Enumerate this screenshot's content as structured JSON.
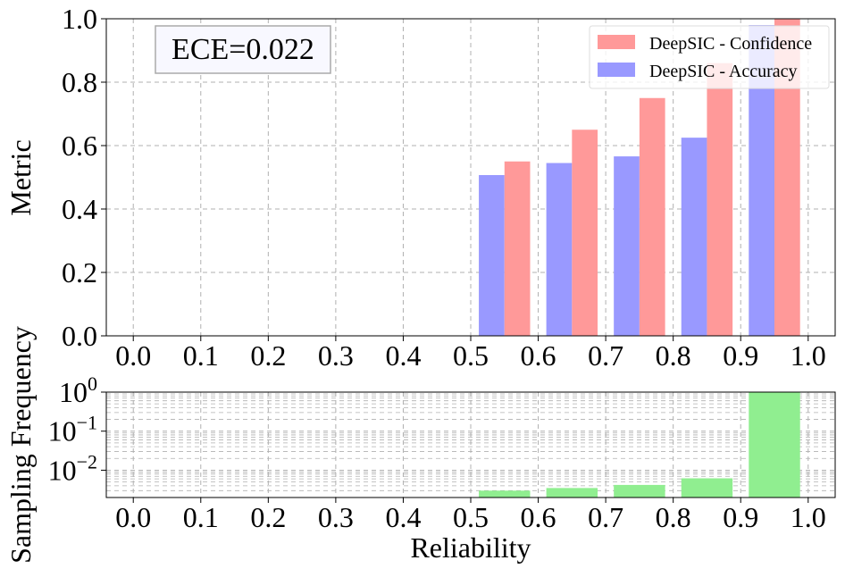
{
  "chart_data": [
    {
      "type": "bar",
      "bins": [
        "0.5-0.6",
        "0.6-0.7",
        "0.7-0.8",
        "0.8-0.9",
        "0.9-1.0"
      ],
      "series": [
        {
          "name": "DeepSIC - Confidence",
          "color": "#ff9999",
          "values": [
            0.55,
            0.65,
            0.75,
            0.86,
            1.0
          ]
        },
        {
          "name": "DeepSIC - Accuracy",
          "color": "#9999ff",
          "values": [
            0.507,
            0.545,
            0.566,
            0.625,
            0.98
          ]
        }
      ],
      "annotation": "ECE=0.022",
      "ylabel": "Metric",
      "xlim": [
        -0.04,
        1.04
      ],
      "ylim": [
        0,
        1.0
      ],
      "xticks": [
        "0.0",
        "0.1",
        "0.2",
        "0.3",
        "0.4",
        "0.5",
        "0.6",
        "0.7",
        "0.8",
        "0.9",
        "1.0"
      ],
      "yticks": [
        "0.0",
        "0.2",
        "0.4",
        "0.6",
        "0.8",
        "1.0"
      ],
      "grid": true,
      "legend_position": "top-right"
    },
    {
      "type": "bar",
      "bins": [
        "0.5-0.6",
        "0.6-0.7",
        "0.7-0.8",
        "0.8-0.9",
        "0.9-1.0"
      ],
      "series": [
        {
          "color": "#90ee90",
          "values": [
            0.003,
            0.0035,
            0.0042,
            0.0062,
            0.98
          ]
        }
      ],
      "xlabel": "Reliability",
      "ylabel": "Sampling Frequency",
      "yscale": "log",
      "xlim": [
        -0.04,
        1.04
      ],
      "ylim": [
        0.002,
        1.0
      ],
      "xticks": [
        "0.0",
        "0.1",
        "0.2",
        "0.3",
        "0.4",
        "0.5",
        "0.6",
        "0.7",
        "0.8",
        "0.9",
        "1.0"
      ],
      "ytick_labels": [
        {
          "base": "10",
          "exp": "0"
        },
        {
          "base": "10",
          "exp": "−1"
        },
        {
          "base": "10",
          "exp": "−2"
        }
      ],
      "grid": true
    }
  ]
}
